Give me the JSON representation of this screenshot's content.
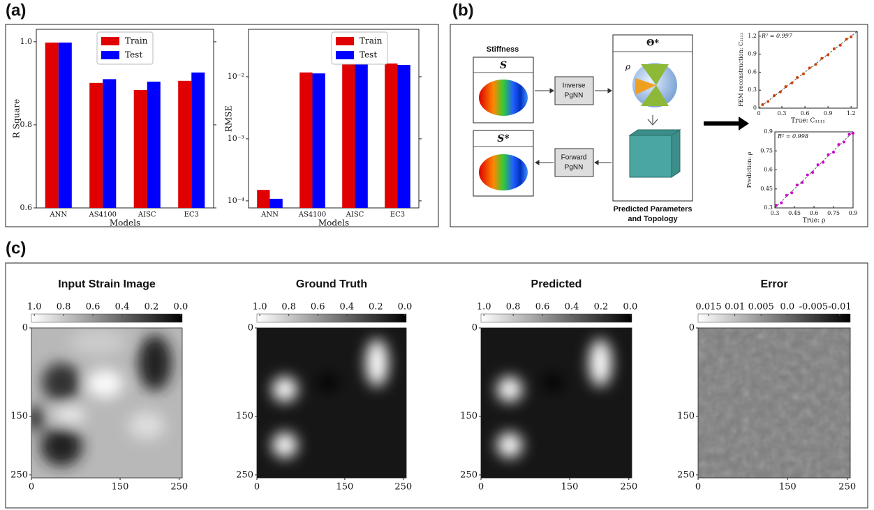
{
  "labels": {
    "a": "(a)",
    "b": "(b)",
    "c": "(c)"
  },
  "chart_data": [
    {
      "type": "bar",
      "ylabel": "R Square",
      "xlabel": "Models",
      "categories": [
        "ANN",
        "AS4100",
        "AISC",
        "EC3"
      ],
      "series": [
        {
          "name": "Train",
          "color": "#e00000",
          "values": [
            0.998,
            0.901,
            0.884,
            0.906
          ]
        },
        {
          "name": "Test",
          "color": "#0000ff",
          "values": [
            0.998,
            0.91,
            0.904,
            0.926
          ]
        }
      ],
      "ylim": [
        0.6,
        1.03
      ],
      "yticks": [
        0.6,
        0.8,
        {
          "value": 1,
          "label": "1.0"
        }
      ],
      "legend": "upper center"
    },
    {
      "type": "bar",
      "ylabel": "RMSE",
      "xlabel": "Models",
      "log": true,
      "categories": [
        "ANN",
        "AS4100",
        "AISC",
        "EC3"
      ],
      "series": [
        {
          "name": "Train",
          "color": "#e00000",
          "values": [
            0.00015,
            0.0117,
            0.036,
            0.0163
          ]
        },
        {
          "name": "Test",
          "color": "#0000ff",
          "values": [
            0.000108,
            0.0113,
            0.033,
            0.0155
          ]
        }
      ],
      "ylim": [
        7.7e-05,
        0.058
      ],
      "yticks": [
        {
          "value": 0.0001,
          "label": "10⁻⁴"
        },
        {
          "value": 0.001,
          "label": "10⁻³"
        },
        {
          "value": 0.01,
          "label": "10⁻²"
        }
      ],
      "legend": "upper right"
    },
    {
      "type": "scatter",
      "xlabel": "True: C₁₁₁₁",
      "ylabel": "FEM reconstruction: C₁₁₁₁",
      "annotation": "R² = 0.997",
      "color": "#cc4000",
      "x": [
        0.05,
        0.12,
        0.2,
        0.28,
        0.35,
        0.43,
        0.5,
        0.58,
        0.66,
        0.74,
        0.82,
        0.9,
        0.98,
        1.06,
        1.14,
        1.2
      ],
      "y": [
        0.06,
        0.11,
        0.21,
        0.27,
        0.36,
        0.42,
        0.51,
        0.57,
        0.67,
        0.73,
        0.83,
        0.89,
        0.99,
        1.05,
        1.15,
        1.19
      ],
      "xlim": [
        0,
        1.28
      ],
      "ylim": [
        0,
        1.28
      ],
      "xticks": [
        0,
        0.3,
        0.6,
        0.9,
        1.2
      ],
      "yticks": [
        0,
        0.3,
        0.6,
        0.9,
        1.2
      ]
    },
    {
      "type": "scatter",
      "xlabel": "True: ρ",
      "ylabel": "Prediction: ρ",
      "annotation": "R² = 0.998",
      "color": "#cc00cc",
      "x": [
        0.31,
        0.35,
        0.39,
        0.43,
        0.47,
        0.51,
        0.55,
        0.59,
        0.63,
        0.67,
        0.71,
        0.75,
        0.79,
        0.83,
        0.87,
        0.9
      ],
      "y": [
        0.32,
        0.34,
        0.4,
        0.42,
        0.48,
        0.5,
        0.56,
        0.58,
        0.64,
        0.66,
        0.72,
        0.74,
        0.8,
        0.82,
        0.88,
        0.89
      ],
      "xlim": [
        0.3,
        0.9
      ],
      "ylim": [
        0.3,
        0.9
      ],
      "xticks": [
        0.3,
        0.45,
        0.6,
        0.75,
        0.9
      ],
      "yticks": [
        0.3,
        0.45,
        0.6,
        0.75,
        0.9
      ]
    }
  ],
  "diagram": {
    "stiffness": "Stiffness",
    "s": "S",
    "s_star": "S*",
    "inverse": [
      "Inverse",
      "PgNN"
    ],
    "forward": [
      "Forward",
      "PgNN"
    ],
    "theta": "Θ*",
    "rho": "ρ",
    "caption": [
      "Predicted Parameters",
      "and Topology"
    ]
  },
  "images": [
    {
      "title": "Input Strain Image",
      "clim": [
        1.02,
        -0.01
      ],
      "colorbar_ticks": [
        {
          "value": 1,
          "label": "1.0"
        },
        0.8,
        0.6,
        0.4,
        0.2,
        {
          "value": 0,
          "label": "0.0"
        }
      ],
      "xlim": [
        0,
        255
      ],
      "ylim": [
        0,
        255
      ],
      "xticks": [
        0,
        150,
        250
      ],
      "yticks": [
        0,
        150,
        250
      ]
    },
    {
      "title": "Ground Truth",
      "clim": [
        1.02,
        -0.01
      ],
      "colorbar_ticks": [
        {
          "value": 1,
          "label": "1.0"
        },
        0.8,
        0.6,
        0.4,
        0.2,
        {
          "value": 0,
          "label": "0.0"
        }
      ],
      "xlim": [
        0,
        255
      ],
      "ylim": [
        0,
        255
      ],
      "xticks": [
        0,
        150,
        250
      ],
      "yticks": [
        0,
        150,
        250
      ]
    },
    {
      "title": "Predicted",
      "clim": [
        1.02,
        -0.01
      ],
      "colorbar_ticks": [
        {
          "value": 1,
          "label": "1.0"
        },
        0.8,
        0.6,
        0.4,
        0.2,
        {
          "value": 0,
          "label": "0.0"
        }
      ],
      "xlim": [
        0,
        255
      ],
      "ylim": [
        0,
        255
      ],
      "xticks": [
        0,
        150,
        250
      ],
      "yticks": [
        0,
        150,
        250
      ]
    },
    {
      "title": "Error",
      "clim": [
        0.017,
        -0.012
      ],
      "colorbar_ticks": [
        0.015,
        0.01,
        0.005,
        {
          "value": 0,
          "label": "0.0"
        },
        -0.005,
        -0.01
      ],
      "xlim": [
        0,
        255
      ],
      "ylim": [
        0,
        255
      ],
      "xticks": [
        0,
        150,
        250
      ],
      "yticks": [
        0,
        150,
        250
      ]
    }
  ]
}
